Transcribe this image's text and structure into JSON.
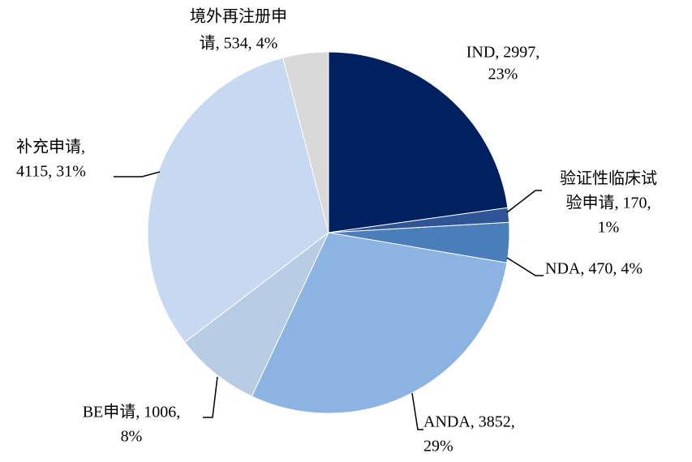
{
  "chart_data": {
    "type": "pie",
    "categories": [
      "IND",
      "验证性临床试验申请",
      "NDA",
      "ANDA",
      "BE申请",
      "补充申请",
      "境外再注册申请"
    ],
    "values": [
      2997,
      170,
      470,
      3852,
      1006,
      4115,
      534
    ],
    "labels": [
      [
        "IND, 2997,",
        "23%"
      ],
      [
        "验证性临床试",
        "验申请, 170,",
        "1%"
      ],
      [
        "NDA, 470, 4%"
      ],
      [
        "ANDA, 3852,",
        "29%"
      ],
      [
        "BE申请, 1006,",
        "8%"
      ],
      [
        "补充申请,",
        "4115, 31%"
      ],
      [
        "境外再注册申",
        "请, 534, 4%"
      ]
    ],
    "colors": [
      "#002060",
      "#2f5597",
      "#4a7ebb",
      "#8db3e2",
      "#b8cce4",
      "#c6d9f0",
      "#d9d9d9"
    ]
  }
}
